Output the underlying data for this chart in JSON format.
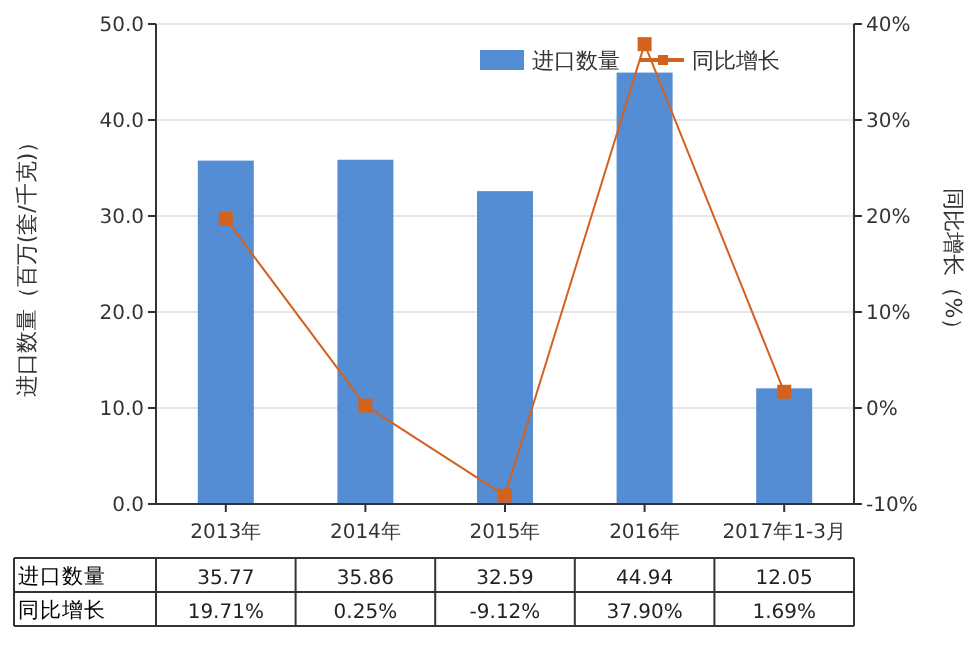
{
  "chart_data": {
    "type": "bar",
    "ylabel": "进口数量（百万(套/千克)）",
    "y2label": "同比增长（%）",
    "categories": [
      "2013年",
      "2014年",
      "2015年",
      "2016年",
      "2017年1-3月"
    ],
    "series": [
      {
        "name": "进口数量",
        "color": "#548dd4",
        "values": [
          35.77,
          35.86,
          32.59,
          44.94,
          12.05
        ],
        "value_labels": [
          "35.77",
          "35.86",
          "32.59",
          "44.94",
          "12.05"
        ]
      },
      {
        "name": "同比增长",
        "type": "line",
        "axis": "y2",
        "color": "#d3621f",
        "marker": "square",
        "values": [
          19.71,
          0.25,
          -9.12,
          37.9,
          1.69
        ],
        "value_labels": [
          "19.71%",
          "0.25%",
          "-9.12%",
          "37.90%",
          "1.69%"
        ]
      }
    ],
    "ylim": [
      0,
      50
    ],
    "yticks": [
      {
        "value": 0,
        "label": "0.0"
      },
      {
        "value": 10,
        "label": "10.0"
      },
      {
        "value": 20,
        "label": "20.0"
      },
      {
        "value": 30,
        "label": "30.0"
      },
      {
        "value": 40,
        "label": "40.0"
      },
      {
        "value": 50,
        "label": "50.0"
      }
    ],
    "y2lim": [
      -10,
      40
    ],
    "y2ticks": [
      {
        "value": -10,
        "label": "-10%"
      },
      {
        "value": 0,
        "label": "0%"
      },
      {
        "value": 10,
        "label": "10%"
      },
      {
        "value": 20,
        "label": "20%"
      },
      {
        "value": 30,
        "label": "30%"
      },
      {
        "value": 40,
        "label": "40%"
      }
    ],
    "grid": "y",
    "legend": "top right"
  }
}
